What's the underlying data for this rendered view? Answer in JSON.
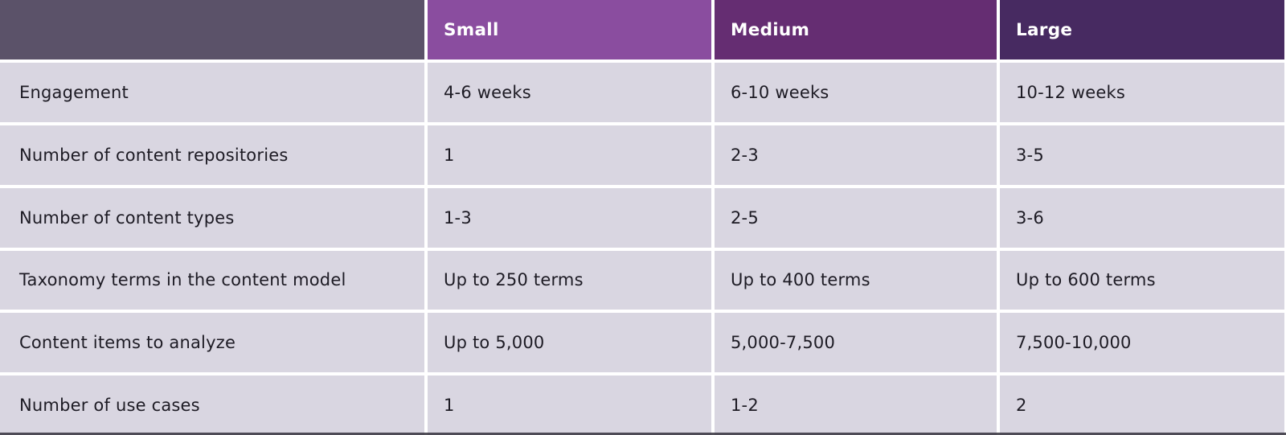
{
  "colors": {
    "header_blank_bg": "#5b5269",
    "cell_bg": "#d9d6e1",
    "text": "#1d1b24",
    "header_text": "#ffffff",
    "page_bg": "#ffffff",
    "bottom_edge": "#35323d"
  },
  "table": {
    "header": {
      "columns": [
        {
          "label": "Small",
          "color": "#8a4d9f"
        },
        {
          "label": "Medium",
          "color": "#652d72"
        },
        {
          "label": "Large",
          "color": "#472a61"
        }
      ]
    },
    "rows": [
      {
        "label": "Engagement",
        "values": [
          "4-6 weeks",
          "6-10 weeks",
          "10-12 weeks"
        ]
      },
      {
        "label": "Number of content repositories",
        "values": [
          "1",
          "2-3",
          "3-5"
        ]
      },
      {
        "label": "Number of content types",
        "values": [
          "1-3",
          "2-5",
          "3-6"
        ]
      },
      {
        "label": "Taxonomy terms in the content model",
        "values": [
          "Up to 250 terms",
          "Up to 400 terms",
          "Up to 600 terms"
        ]
      },
      {
        "label": "Content items to analyze",
        "values": [
          "Up to 5,000",
          "5,000-7,500",
          "7,500-10,000"
        ]
      },
      {
        "label": "Number of use cases",
        "values": [
          "1",
          "1-2",
          "2"
        ]
      }
    ]
  }
}
